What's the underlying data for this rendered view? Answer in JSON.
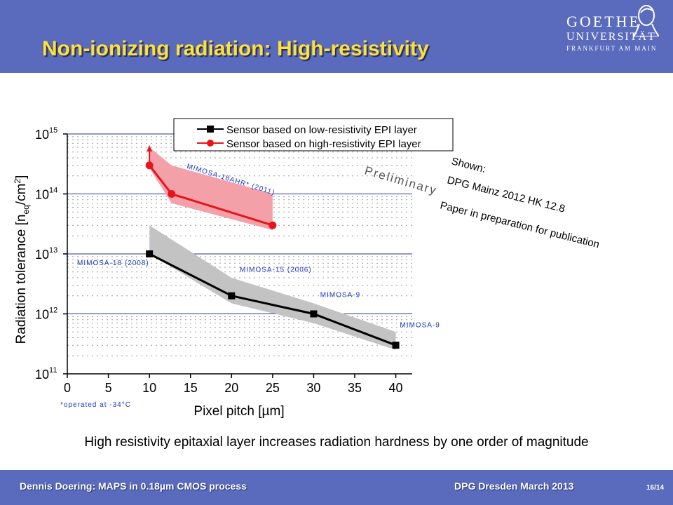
{
  "slide": {
    "title": "Non-ionizing radiation: High-resistivity",
    "logo": {
      "line1": "GOETHE",
      "line2": "UNIVERSITÄT",
      "line3": "FRANKFURT AM MAIN"
    },
    "caption": "High resistivity epitaxial layer increases radiation hardness by one order of magnitude",
    "footer_left": "Dennis Doering: MAPS in 0.18µm CMOS process",
    "footer_mid": "DPG Dresden March 2013",
    "page": "16/14",
    "colors": {
      "header": "#5a6bbd",
      "title": "#ffe033",
      "series_low": "#000000",
      "series_high": "#e8141b",
      "band_low": "#c3c3c3",
      "band_high": "#f4a0a8"
    }
  },
  "chart_data": {
    "type": "line",
    "xlabel": "Pixel pitch [µm]",
    "ylabel": "Radiation tolerance [n",
    "ylabel_sub": "eq",
    "ylabel_tail": "/cm",
    "ylabel_sup": "2",
    "ylabel_end": "]",
    "xlim": [
      0,
      42
    ],
    "xticks": [
      0,
      5,
      10,
      15,
      20,
      25,
      30,
      35,
      40
    ],
    "y_scale": "log",
    "ylim": [
      100000000000.0,
      1000000000000000.0
    ],
    "yticks": [
      {
        "value": 100000000000.0,
        "base": "10",
        "exp": "11"
      },
      {
        "value": 1000000000000.0,
        "base": "10",
        "exp": "12"
      },
      {
        "value": 10000000000000.0,
        "base": "10",
        "exp": "13"
      },
      {
        "value": 100000000000000.0,
        "base": "10",
        "exp": "14"
      },
      {
        "value": 1000000000000000.0,
        "base": "10",
        "exp": "15"
      }
    ],
    "grid": true,
    "legend_position": "top",
    "series": [
      {
        "name": "Sensor based on low-resistivity EPI layer",
        "color": "#000000",
        "marker": "square",
        "x": [
          10,
          20,
          30,
          40
        ],
        "y": [
          10000000000000.0,
          2000000000000.0,
          1000000000000.0,
          300000000000.0
        ],
        "band": {
          "x": [
            10,
            20,
            30,
            40
          ],
          "upper": [
            30000000000000.0,
            4000000000000.0,
            1500000000000.0,
            500000000000.0
          ],
          "lower": [
            10000000000000.0,
            1500000000000.0,
            700000000000.0,
            250000000000.0
          ]
        }
      },
      {
        "name": "Sensor based on high-resistivity EPI layer",
        "color": "#e8141b",
        "marker": "circle",
        "x": [
          10,
          12.7,
          25
        ],
        "y": [
          300000000000000.0,
          100000000000000.0,
          30000000000000.0
        ],
        "band": {
          "x": [
            10,
            12.7,
            25
          ],
          "upper": [
            600000000000000.0,
            300000000000000.0,
            100000000000000.0
          ],
          "lower": [
            270000000000000.0,
            70000000000000.0,
            25000000000000.0
          ]
        }
      }
    ],
    "point_labels": [
      {
        "text": "MIMOSA-18 (2008)",
        "x": 1.2,
        "y": 6500000000000.0
      },
      {
        "text": "MIMOSA-15 (2006)",
        "x": 21,
        "y": 5000000000000.0
      },
      {
        "text": "MIMOSA-9",
        "x": 30.8,
        "y": 1900000000000.0
      },
      {
        "text": "MIMOSA-9",
        "x": 40.5,
        "y": 600000000000.0
      },
      {
        "text": "MIMOSA-18AHR* (2011)",
        "x": 14.5,
        "y": 270000000000000.0,
        "rotate": 17
      }
    ],
    "footnote": "*operated at -34°C",
    "annotations": [
      {
        "text": "Preliminary"
      },
      {
        "text": "Shown:"
      },
      {
        "text": "DPG Mainz 2012 HK 12.8"
      },
      {
        "text": "Paper in preparation for publication"
      }
    ]
  }
}
